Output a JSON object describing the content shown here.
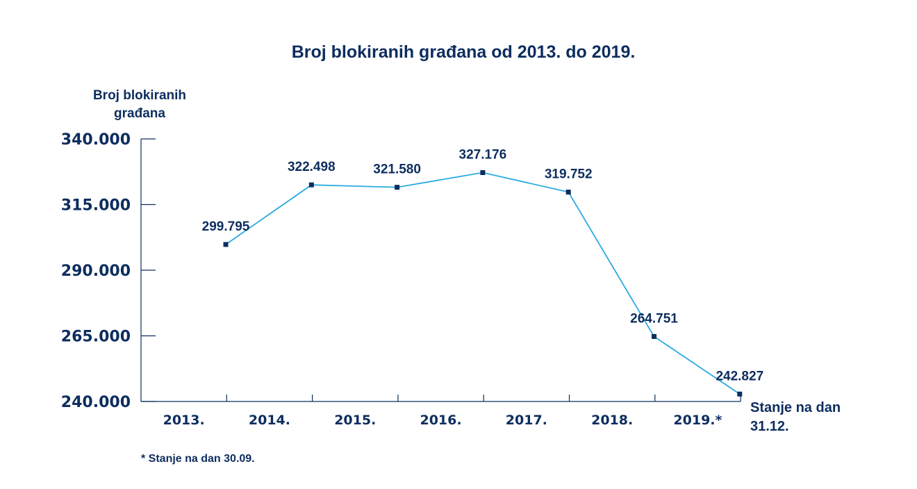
{
  "colors": {
    "text": "#0d2d5e",
    "line": "#29aae1",
    "marker": "#0d2d5e",
    "axis": "#0d2d5e"
  },
  "chart_data": {
    "type": "line",
    "title": "Broj blokiranih građana od 2013. do 2019.",
    "ylabel_lines": [
      "Broj blokiranih",
      "građana"
    ],
    "xlabel_lines": [
      "Stanje na dan",
      "31.12."
    ],
    "footnote": "* Stanje na dan 30.09.",
    "categories": [
      "2013.",
      "2014.",
      "2015.",
      "2016.",
      "2017.",
      "2018.",
      "2019.*"
    ],
    "ylim": [
      240000,
      340000
    ],
    "yticks": [
      240000,
      265000,
      290000,
      315000,
      340000
    ],
    "ytick_labels": [
      "240.000",
      "265.000",
      "290.000",
      "315.000",
      "340.000"
    ],
    "series": [
      {
        "name": "Broj blokiranih građana",
        "values": [
          299795,
          322498,
          321580,
          327176,
          319752,
          264751,
          242827
        ],
        "labels": [
          "299.795",
          "322.498",
          "321.580",
          "327.176",
          "319.752",
          "264.751",
          "242.827"
        ]
      }
    ],
    "grid": false,
    "legend": "none"
  }
}
